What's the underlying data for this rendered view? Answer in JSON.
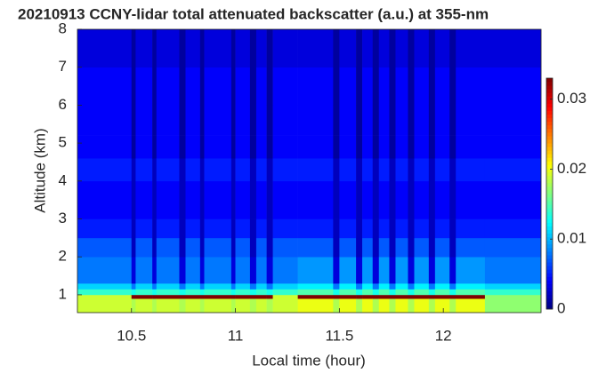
{
  "chart_data": {
    "type": "heatmap",
    "title": "20210913 CCNY-lidar total attenuated backscatter (a.u.) at 355-nm",
    "x_label": "Local time (hour)",
    "y_label": "Altitude (km)",
    "colormap": "jet",
    "xlim": [
      10.24,
      12.47
    ],
    "xticks": [
      10.5,
      11,
      11.5,
      12
    ],
    "ylim": [
      0.53,
      8
    ],
    "yticks": [
      1,
      2,
      3,
      4,
      5,
      6,
      7,
      8
    ],
    "clim": [
      0,
      0.033
    ],
    "cticks": [
      0,
      0.01,
      0.02,
      0.03
    ],
    "x_edges": [
      10.24,
      10.5,
      10.52,
      10.6,
      10.62,
      10.73,
      10.76,
      10.83,
      10.85,
      10.98,
      11.0,
      11.07,
      11.1,
      11.15,
      11.18,
      11.3,
      11.47,
      11.5,
      11.58,
      11.61,
      11.66,
      11.69,
      11.74,
      11.77,
      11.83,
      11.86,
      11.93,
      11.96,
      12.03,
      12.06,
      12.2,
      12.47
    ],
    "y_edges": [
      0.53,
      0.9,
      1.0,
      1.15,
      1.3,
      2,
      2.5,
      3,
      4,
      4.6,
      5.2,
      6,
      7,
      8
    ],
    "z": [
      [
        0.019,
        0.019,
        0.014,
        0.011,
        0.008,
        0.007,
        0.005,
        0.004,
        0.005,
        0.004,
        0.004,
        0.004,
        0.003
      ],
      [
        0.018,
        0.033,
        0.013,
        0.008,
        0.003,
        0.002,
        0.002,
        0.002,
        0.002,
        0.001,
        0.001,
        0.001,
        0.001
      ],
      [
        0.019,
        0.033,
        0.014,
        0.011,
        0.008,
        0.007,
        0.005,
        0.004,
        0.005,
        0.004,
        0.004,
        0.004,
        0.003
      ],
      [
        0.018,
        0.033,
        0.013,
        0.008,
        0.003,
        0.002,
        0.002,
        0.002,
        0.002,
        0.001,
        0.001,
        0.001,
        0.001
      ],
      [
        0.019,
        0.033,
        0.014,
        0.011,
        0.008,
        0.007,
        0.005,
        0.004,
        0.005,
        0.004,
        0.004,
        0.004,
        0.003
      ],
      [
        0.018,
        0.033,
        0.013,
        0.008,
        0.003,
        0.002,
        0.002,
        0.002,
        0.002,
        0.001,
        0.001,
        0.001,
        0.001
      ],
      [
        0.019,
        0.033,
        0.014,
        0.011,
        0.008,
        0.007,
        0.005,
        0.004,
        0.005,
        0.004,
        0.004,
        0.004,
        0.003
      ],
      [
        0.018,
        0.033,
        0.013,
        0.008,
        0.003,
        0.002,
        0.002,
        0.002,
        0.002,
        0.001,
        0.001,
        0.001,
        0.001
      ],
      [
        0.019,
        0.033,
        0.014,
        0.011,
        0.008,
        0.007,
        0.005,
        0.004,
        0.005,
        0.004,
        0.004,
        0.004,
        0.003
      ],
      [
        0.018,
        0.033,
        0.013,
        0.008,
        0.003,
        0.002,
        0.002,
        0.002,
        0.002,
        0.001,
        0.001,
        0.001,
        0.001
      ],
      [
        0.019,
        0.033,
        0.014,
        0.011,
        0.008,
        0.007,
        0.005,
        0.004,
        0.005,
        0.004,
        0.004,
        0.004,
        0.003
      ],
      [
        0.018,
        0.033,
        0.013,
        0.008,
        0.003,
        0.002,
        0.002,
        0.002,
        0.002,
        0.001,
        0.001,
        0.001,
        0.001
      ],
      [
        0.019,
        0.033,
        0.014,
        0.011,
        0.008,
        0.007,
        0.005,
        0.004,
        0.005,
        0.004,
        0.004,
        0.004,
        0.003
      ],
      [
        0.018,
        0.033,
        0.013,
        0.008,
        0.003,
        0.002,
        0.002,
        0.002,
        0.002,
        0.001,
        0.001,
        0.001,
        0.001
      ],
      [
        0.019,
        0.019,
        0.014,
        0.011,
        0.008,
        0.007,
        0.005,
        0.004,
        0.005,
        0.004,
        0.004,
        0.004,
        0.003
      ],
      [
        0.02,
        0.033,
        0.015,
        0.012,
        0.009,
        0.007,
        0.005,
        0.004,
        0.005,
        0.004,
        0.004,
        0.004,
        0.003
      ],
      [
        0.018,
        0.033,
        0.013,
        0.008,
        0.003,
        0.002,
        0.002,
        0.002,
        0.002,
        0.001,
        0.001,
        0.001,
        0.001
      ],
      [
        0.02,
        0.033,
        0.015,
        0.012,
        0.009,
        0.007,
        0.005,
        0.004,
        0.005,
        0.004,
        0.004,
        0.004,
        0.003
      ],
      [
        0.018,
        0.033,
        0.013,
        0.008,
        0.003,
        0.002,
        0.002,
        0.002,
        0.002,
        0.001,
        0.001,
        0.001,
        0.001
      ],
      [
        0.02,
        0.033,
        0.015,
        0.012,
        0.009,
        0.007,
        0.005,
        0.004,
        0.005,
        0.004,
        0.004,
        0.004,
        0.003
      ],
      [
        0.018,
        0.033,
        0.013,
        0.008,
        0.003,
        0.002,
        0.002,
        0.002,
        0.002,
        0.001,
        0.001,
        0.001,
        0.001
      ],
      [
        0.02,
        0.033,
        0.015,
        0.012,
        0.009,
        0.007,
        0.005,
        0.004,
        0.005,
        0.004,
        0.004,
        0.004,
        0.003
      ],
      [
        0.018,
        0.033,
        0.013,
        0.008,
        0.003,
        0.002,
        0.002,
        0.002,
        0.002,
        0.001,
        0.001,
        0.001,
        0.001
      ],
      [
        0.02,
        0.033,
        0.015,
        0.012,
        0.009,
        0.007,
        0.005,
        0.004,
        0.005,
        0.004,
        0.004,
        0.004,
        0.003
      ],
      [
        0.018,
        0.033,
        0.013,
        0.008,
        0.003,
        0.002,
        0.002,
        0.002,
        0.002,
        0.001,
        0.001,
        0.001,
        0.001
      ],
      [
        0.02,
        0.033,
        0.015,
        0.012,
        0.009,
        0.007,
        0.005,
        0.004,
        0.005,
        0.004,
        0.004,
        0.004,
        0.003
      ],
      [
        0.018,
        0.033,
        0.013,
        0.008,
        0.003,
        0.002,
        0.002,
        0.002,
        0.002,
        0.001,
        0.001,
        0.001,
        0.001
      ],
      [
        0.02,
        0.033,
        0.015,
        0.012,
        0.009,
        0.007,
        0.005,
        0.004,
        0.005,
        0.004,
        0.004,
        0.004,
        0.003
      ],
      [
        0.018,
        0.033,
        0.013,
        0.008,
        0.003,
        0.002,
        0.002,
        0.002,
        0.002,
        0.001,
        0.001,
        0.001,
        0.001
      ],
      [
        0.02,
        0.033,
        0.015,
        0.012,
        0.009,
        0.007,
        0.005,
        0.004,
        0.005,
        0.004,
        0.004,
        0.004,
        0.003
      ],
      [
        0.017,
        0.017,
        0.014,
        0.011,
        0.008,
        0.007,
        0.005,
        0.004,
        0.005,
        0.004,
        0.004,
        0.004,
        0.003
      ]
    ]
  }
}
